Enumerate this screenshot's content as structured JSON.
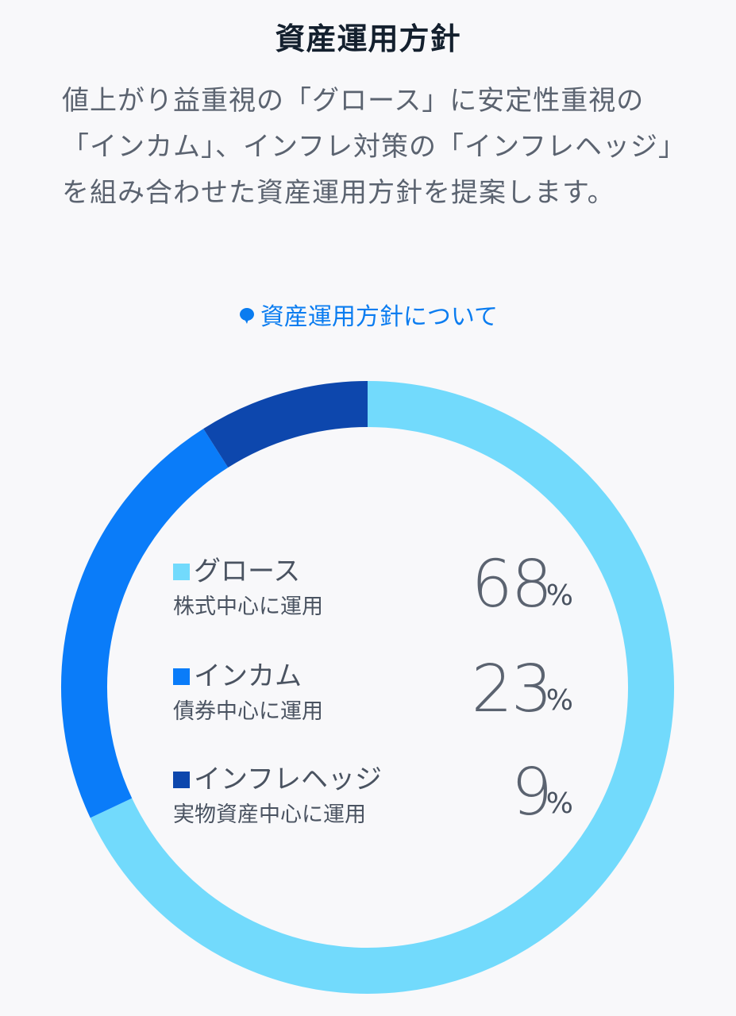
{
  "header": {
    "title": "資産運用方針"
  },
  "description": "値上がり益重視の「グロース」に安定性重視の「インカム」、インフレ対策の「インフレヘッジ」を組み合わせた資産運用方針を提案します。",
  "about_link": {
    "icon": "speech-bubble-icon",
    "label": "資産運用方針について"
  },
  "colors": {
    "growth": "#72dafc",
    "income": "#0a7cf9",
    "inflation_hedge": "#0d47ad",
    "accent": "#0a7cf0"
  },
  "allocation": {
    "items": [
      {
        "name": "グロース",
        "sub": "株式中心に運用",
        "value": "68",
        "unit": "%"
      },
      {
        "name": "インカム",
        "sub": "債券中心に運用",
        "value": "23",
        "unit": "%"
      },
      {
        "name": "インフレヘッジ",
        "sub": "実物資産中心に運用",
        "value": "9",
        "unit": "%"
      }
    ]
  },
  "chart_data": {
    "type": "pie",
    "categories": [
      "グロース",
      "インカム",
      "インフレヘッジ"
    ],
    "values": [
      68,
      23,
      9
    ]
  }
}
